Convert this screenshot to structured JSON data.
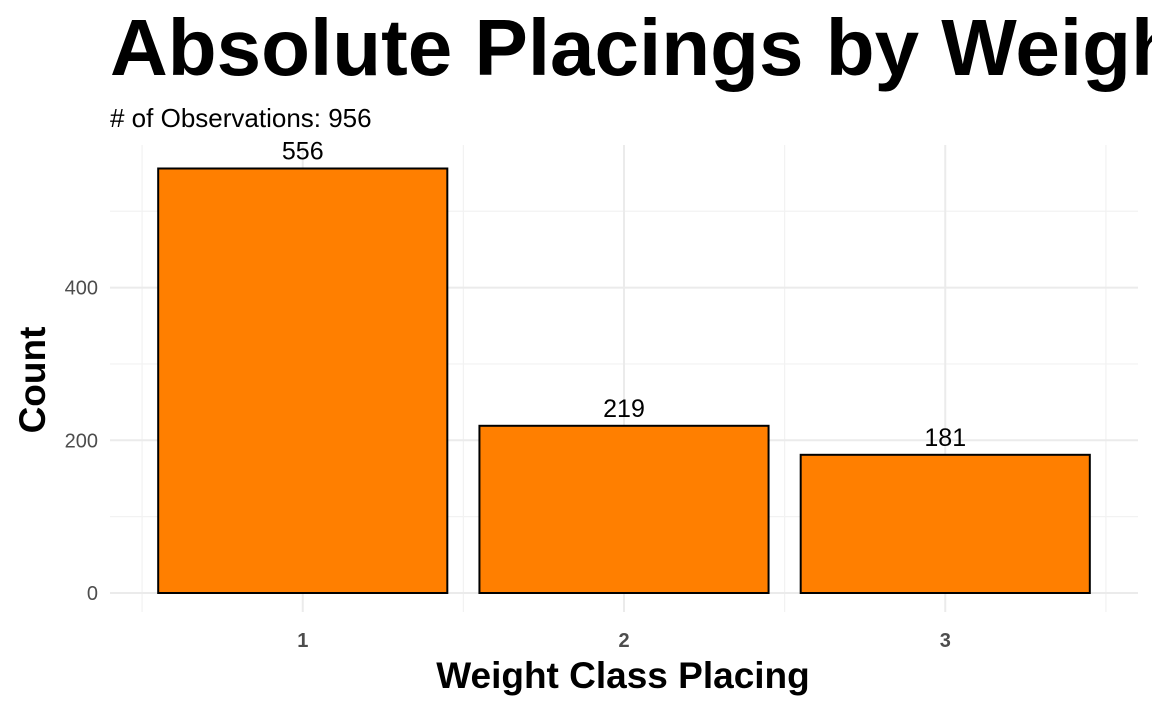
{
  "chart_data": {
    "type": "bar",
    "title": "Absolute Placings by Weight Class",
    "subtitle": "# of Observations: 956",
    "xlabel": "Weight Class Placing",
    "ylabel": "Count",
    "categories": [
      "1",
      "2",
      "3"
    ],
    "values": [
      556,
      219,
      181
    ],
    "data_labels": [
      "556",
      "219",
      "181"
    ],
    "yticks": [
      0,
      200,
      400
    ],
    "ytick_labels": [
      "0",
      "200",
      "400"
    ],
    "ylim": [
      0,
      580
    ],
    "grid": true,
    "legend": "none",
    "colors": {
      "bar_fill": "#FF7F00",
      "bar_stroke": "#000000"
    }
  }
}
